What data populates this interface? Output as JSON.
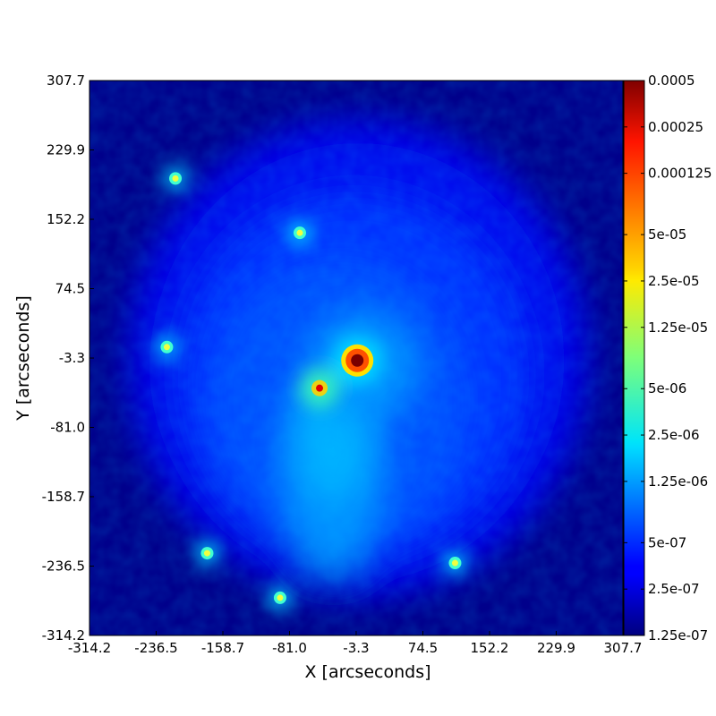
{
  "chart_data": {
    "type": "heatmap",
    "title": "",
    "xlabel": "X [arcseconds]",
    "ylabel": "Y [arcseconds]",
    "xlim": [
      -314.2,
      307.7
    ],
    "ylim": [
      -314.2,
      307.7
    ],
    "x_ticks": [
      "-314.2",
      "-236.5",
      "-158.7",
      "-81.0",
      "-3.3",
      "74.5",
      "152.2",
      "229.9",
      "307.7"
    ],
    "y_ticks": [
      "307.7",
      "229.9",
      "152.2",
      "74.5",
      "-3.3",
      "-81.0",
      "-158.7",
      "-236.5",
      "-314.2"
    ],
    "colorbar": {
      "scale": "log",
      "colormap": "jet",
      "min": 1.25e-07,
      "max": 0.0005,
      "ticks": [
        {
          "label": "0.0005",
          "value": 0.0005
        },
        {
          "label": "0.00025",
          "value": 0.00025
        },
        {
          "label": "0.000125",
          "value": 0.000125
        },
        {
          "label": "5e-05",
          "value": 5e-05
        },
        {
          "label": "2.5e-05",
          "value": 2.5e-05
        },
        {
          "label": "1.25e-05",
          "value": 1.25e-05
        },
        {
          "label": "5e-06",
          "value": 5e-06
        },
        {
          "label": "2.5e-06",
          "value": 2.5e-06
        },
        {
          "label": "1.25e-06",
          "value": 1.25e-06
        },
        {
          "label": "5e-07",
          "value": 5e-07
        },
        {
          "label": "2.5e-07",
          "value": 2.5e-07
        },
        {
          "label": "1.25e-07",
          "value": 1.25e-07
        }
      ]
    },
    "sources": [
      {
        "x": -2,
        "y": -6,
        "value": 0.0005
      },
      {
        "x": -46,
        "y": -37,
        "value": 0.00025
      },
      {
        "x": -214,
        "y": 198,
        "value": 2.5e-05
      },
      {
        "x": -69,
        "y": 137,
        "value": 2.5e-05
      },
      {
        "x": -224,
        "y": 9,
        "value": 2.5e-05
      },
      {
        "x": -177,
        "y": -222,
        "value": 2.5e-05
      },
      {
        "x": 112,
        "y": -233,
        "value": 2.5e-05
      },
      {
        "x": -92,
        "y": -272,
        "value": 2.5e-05
      }
    ]
  }
}
